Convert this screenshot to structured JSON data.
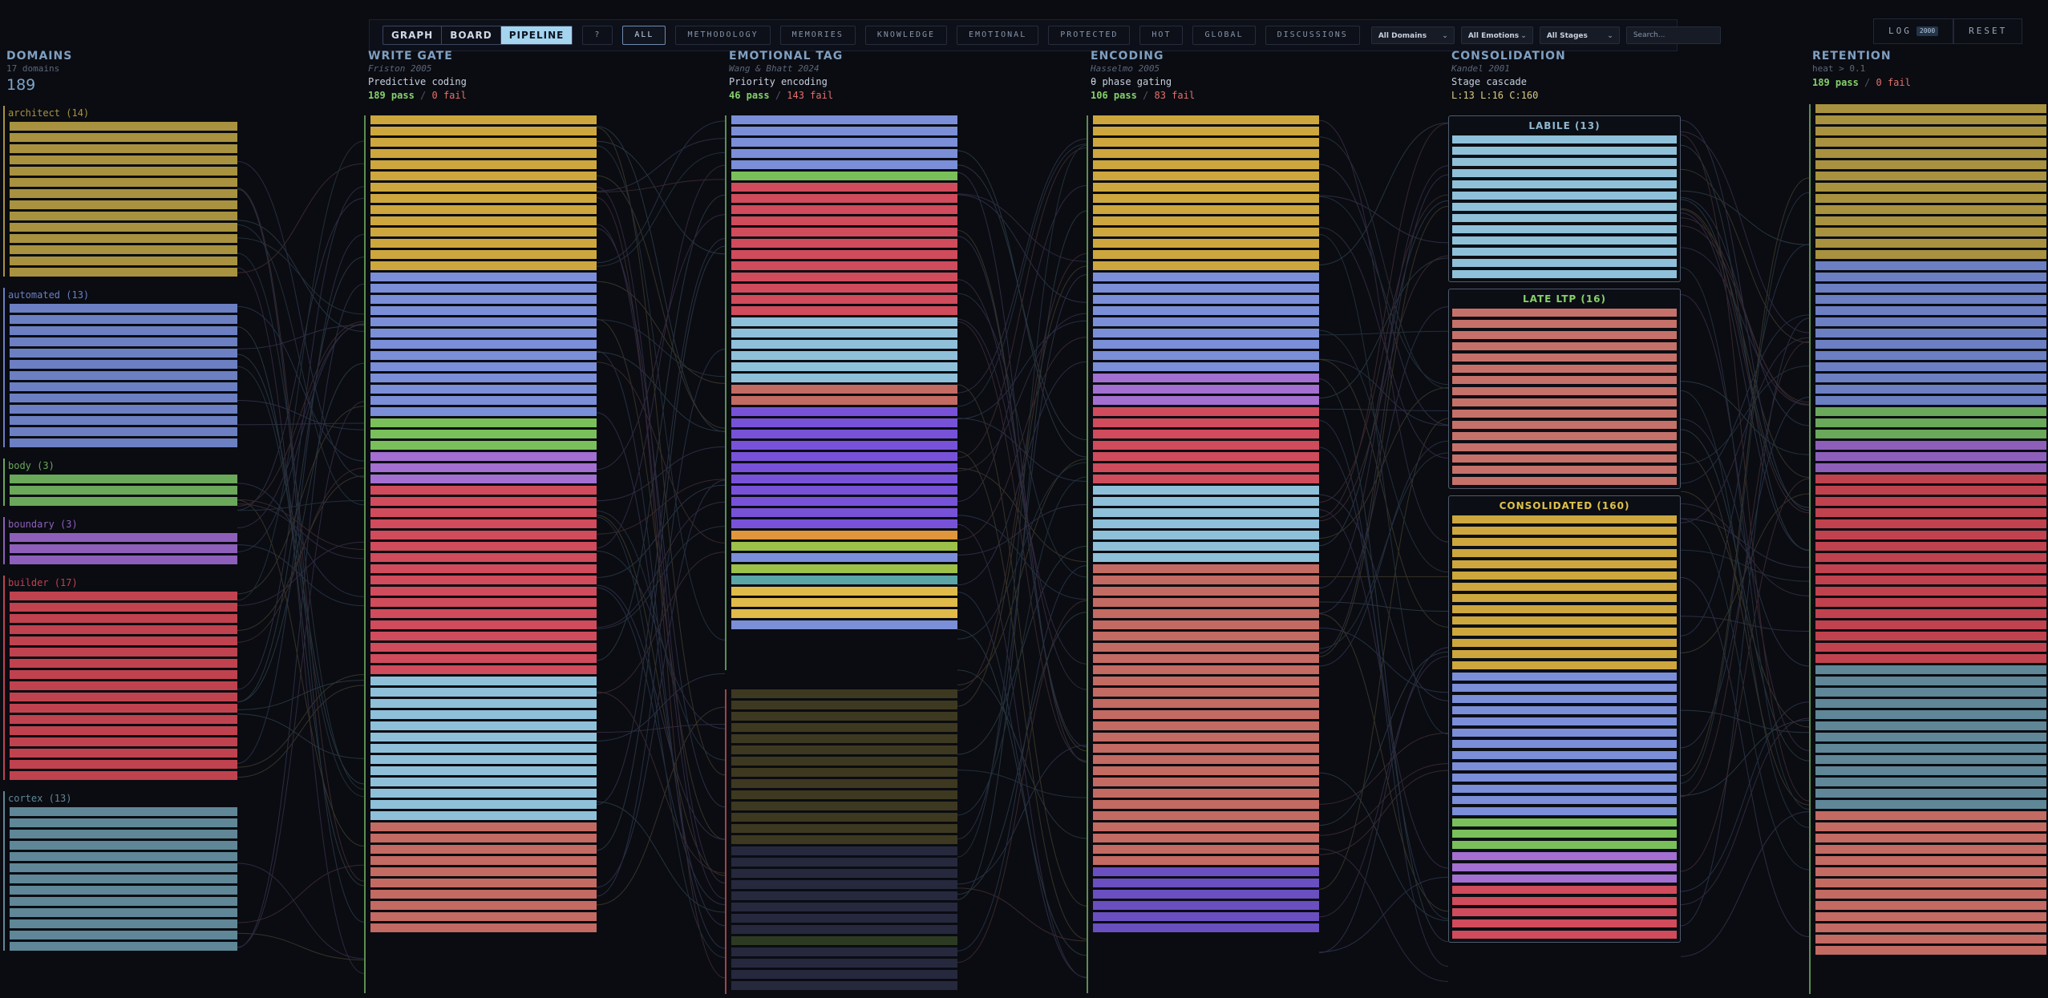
{
  "toolbar": {
    "views": [
      {
        "label": "GRAPH",
        "active": false
      },
      {
        "label": "BOARD",
        "active": false
      },
      {
        "label": "PIPELINE",
        "active": true
      }
    ],
    "help_label": "?",
    "filters": [
      {
        "label": "ALL",
        "active": true
      },
      {
        "label": "METHODOLOGY",
        "active": false
      },
      {
        "label": "MEMORIES",
        "active": false
      },
      {
        "label": "KNOWLEDGE",
        "active": false
      },
      {
        "label": "EMOTIONAL",
        "active": false
      },
      {
        "label": "PROTECTED",
        "active": false
      },
      {
        "label": "HOT",
        "active": false
      },
      {
        "label": "GLOBAL",
        "active": false
      },
      {
        "label": "DISCUSSIONS",
        "active": false
      }
    ],
    "domain_select": "All Domains",
    "emotion_select": "All Emotions",
    "stage_select": "All Stages",
    "search_placeholder": "Search..."
  },
  "top_right": {
    "log_label": "LOG",
    "log_badge": "2000",
    "reset_label": "RESET"
  },
  "colors": {
    "architect": "#a8923f",
    "automated": "#6b7fc2",
    "body": "#6aa85a",
    "boundary": "#8e5fba",
    "builder": "#c0424f",
    "cortex": "#5f8797",
    "gold": "#cda73e",
    "periwinkle": "#7b8ed8",
    "green": "#79c05a",
    "lavender": "#a36fd0",
    "red": "#d04b5b",
    "sky": "#8fc0d9",
    "purple": "#7752d8",
    "salmon": "#c36a62",
    "orange": "#e0973b",
    "lime": "#9cc048",
    "teal": "#5aa6a6",
    "yellow": "#e0bb4a",
    "indigo": "#6a4fc0",
    "drab": "#3d3820",
    "navy": "#26293d",
    "moss": "#2c3a22",
    "pale_blue": "#8fb7d0",
    "coral": "#c5716a",
    "pass": "#86d06a",
    "fail": "#e4706a"
  },
  "domains": {
    "title": "DOMAINS",
    "subtitle": "17 domains",
    "total": "189",
    "groups": [
      {
        "label": "architect (14)",
        "count": 14,
        "color": "#a8923f"
      },
      {
        "label": "automated (13)",
        "count": 13,
        "color": "#6b7fc2"
      },
      {
        "label": "body (3)",
        "count": 3,
        "color": "#6aa85a"
      },
      {
        "label": "boundary (3)",
        "count": 3,
        "color": "#8e5fba"
      },
      {
        "label": "builder (17)",
        "count": 17,
        "color": "#c0424f"
      },
      {
        "label": "cortex (13)",
        "count": 13,
        "color": "#5f8797"
      }
    ]
  },
  "write_gate": {
    "title": "WRITE GATE",
    "cite": "Friston 2005",
    "desc": "Predictive coding",
    "pass": "189 pass",
    "sep": "/",
    "fail": "0 fail",
    "bars": [
      {
        "n": 14,
        "color": "#cda73e"
      },
      {
        "n": 13,
        "color": "#7b8ed8"
      },
      {
        "n": 3,
        "color": "#79c05a"
      },
      {
        "n": 3,
        "color": "#a36fd0"
      },
      {
        "n": 17,
        "color": "#d04b5b"
      },
      {
        "n": 13,
        "color": "#8fc0d9"
      },
      {
        "n": 10,
        "color": "#c36a62"
      }
    ]
  },
  "emotional_tag": {
    "title": "EMOTIONAL TAG",
    "cite": "Wang & Bhatt 2024",
    "desc": "Priority encoding",
    "pass": "46 pass",
    "sep": "/",
    "fail": "143 fail",
    "pass_bars": [
      {
        "n": 5,
        "color": "#7b8ed8"
      },
      {
        "n": 1,
        "color": "#79c05a"
      },
      {
        "n": 12,
        "color": "#d04b5b"
      },
      {
        "n": 6,
        "color": "#8fc0d9"
      },
      {
        "n": 2,
        "color": "#c36a62"
      },
      {
        "n": 11,
        "color": "#7752d8"
      },
      {
        "n": 1,
        "color": "#e0973b"
      },
      {
        "n": 1,
        "color": "#9cc048"
      },
      {
        "n": 1,
        "color": "#7b8ed8"
      },
      {
        "n": 1,
        "color": "#9cc048"
      },
      {
        "n": 1,
        "color": "#5aa6a6"
      },
      {
        "n": 3,
        "color": "#e0bb4a"
      },
      {
        "n": 1,
        "color": "#7b8ed8"
      }
    ],
    "fail_bars": [
      {
        "n": 14,
        "color": "#3d3820"
      },
      {
        "n": 8,
        "color": "#26293d"
      },
      {
        "n": 1,
        "color": "#2c3a22"
      },
      {
        "n": 4,
        "color": "#26293d"
      }
    ]
  },
  "encoding": {
    "title": "ENCODING",
    "cite": "Hasselmo 2005",
    "desc": "θ phase gating",
    "pass": "106 pass",
    "sep": "/",
    "fail": "83 fail",
    "bars": [
      {
        "n": 14,
        "color": "#cda73e"
      },
      {
        "n": 9,
        "color": "#7b8ed8"
      },
      {
        "n": 3,
        "color": "#a36fd0"
      },
      {
        "n": 7,
        "color": "#d04b5b"
      },
      {
        "n": 7,
        "color": "#8fc0d9"
      },
      {
        "n": 27,
        "color": "#c36a62"
      },
      {
        "n": 6,
        "color": "#6a4fc0"
      }
    ]
  },
  "consolidation": {
    "title": "CONSOLIDATION",
    "cite": "Kandel 2001",
    "desc": "Stage cascade",
    "stages": "L:13 L:16 C:160",
    "boxes": [
      {
        "title": "LABILE (13)",
        "color": "#8fb7d0",
        "bars": [
          {
            "n": 13,
            "color": "#8fc0d9"
          }
        ]
      },
      {
        "title": "LATE LTP (16)",
        "color": "#86d06a",
        "bars": [
          {
            "n": 16,
            "color": "#c5716a"
          }
        ]
      },
      {
        "title": "CONSOLIDATED (160)",
        "color": "#e0c24a",
        "bars": [
          {
            "n": 14,
            "color": "#cda73e"
          },
          {
            "n": 13,
            "color": "#7b8ed8"
          },
          {
            "n": 3,
            "color": "#79c05a"
          },
          {
            "n": 3,
            "color": "#a36fd0"
          },
          {
            "n": 5,
            "color": "#d04b5b"
          }
        ]
      }
    ]
  },
  "retention": {
    "title": "RETENTION",
    "desc": "heat > 0.1",
    "pass": "189 pass",
    "sep": "/",
    "fail": "0 fail",
    "bars": [
      {
        "n": 14,
        "color": "#a8923f"
      },
      {
        "n": 13,
        "color": "#6b7fc2"
      },
      {
        "n": 3,
        "color": "#6aa85a"
      },
      {
        "n": 3,
        "color": "#8e5fba"
      },
      {
        "n": 17,
        "color": "#c0424f"
      },
      {
        "n": 13,
        "color": "#5f8797"
      },
      {
        "n": 13,
        "color": "#c36a62"
      }
    ]
  }
}
